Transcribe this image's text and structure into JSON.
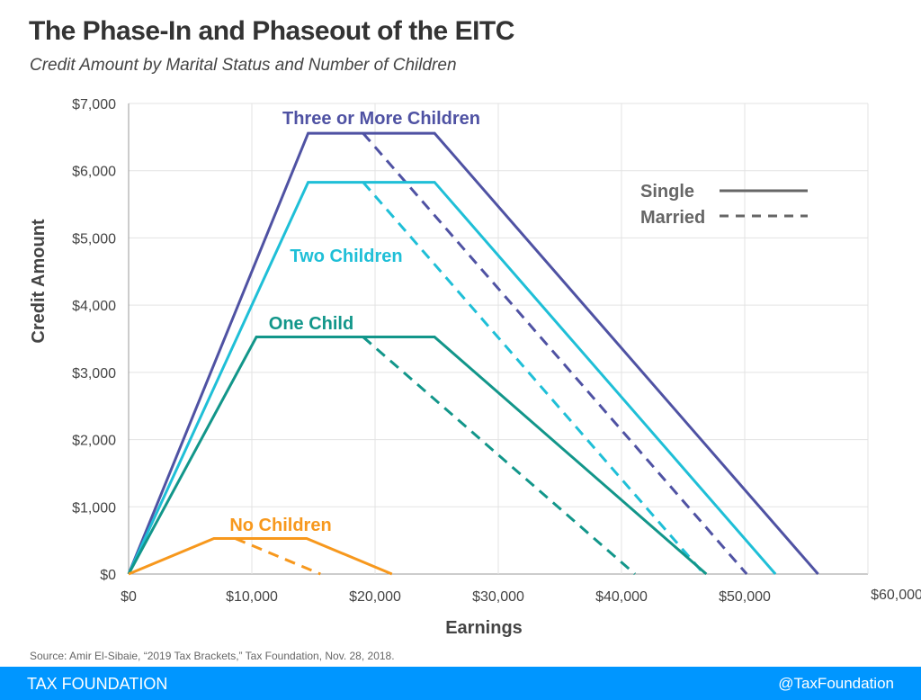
{
  "header": {
    "title": "The Phase-In and Phaseout of the EITC",
    "subtitle": "Credit Amount by Marital Status and Number of Children"
  },
  "source": "Source: Amir El-Sibaie, “2019 Tax Brackets,” Tax Foundation, Nov. 28, 2018.",
  "footer": {
    "brand": "TAX FOUNDATION",
    "handle": "@TaxFoundation",
    "color": "#0096ff"
  },
  "chart_data": {
    "type": "line",
    "xlabel": "Earnings",
    "ylabel": "Credit Amount",
    "xlim": [
      0,
      60000
    ],
    "ylim": [
      0,
      7000
    ],
    "xticks": [
      0,
      10000,
      20000,
      30000,
      40000,
      50000,
      60000
    ],
    "xtick_labels": [
      "$0",
      "$10,000",
      "$20,000",
      "$30,000",
      "$40,000",
      "$50,000",
      "$60,000"
    ],
    "yticks": [
      0,
      1000,
      2000,
      3000,
      4000,
      5000,
      6000,
      7000
    ],
    "ytick_labels": [
      "$0",
      "$1,000",
      "$2,000",
      "$3,000",
      "$4,000",
      "$5,000",
      "$6,000",
      "$7,000"
    ],
    "grid": true,
    "legend": {
      "placement": "right",
      "entries": [
        {
          "label": "Single",
          "style": "solid"
        },
        {
          "label": "Married",
          "style": "dashed"
        }
      ]
    },
    "groups": [
      {
        "label": "Three or More Children",
        "color": "#4f52a3",
        "solid": [
          [
            0,
            0
          ],
          [
            14570,
            6557
          ],
          [
            24830,
            6557
          ],
          [
            55952,
            0
          ]
        ],
        "dashed": [
          [
            19030,
            6557
          ],
          [
            50162,
            0
          ]
        ]
      },
      {
        "label": "Two Children",
        "color": "#1fbfd7",
        "solid": [
          [
            0,
            0
          ],
          [
            14570,
            5828
          ],
          [
            24830,
            5828
          ],
          [
            52493,
            0
          ]
        ],
        "dashed": [
          [
            19030,
            5828
          ],
          [
            46703,
            0
          ]
        ]
      },
      {
        "label": "One Child",
        "color": "#12968a",
        "solid": [
          [
            0,
            0
          ],
          [
            10370,
            3526
          ],
          [
            24830,
            3526
          ],
          [
            46884,
            0
          ]
        ],
        "dashed": [
          [
            19030,
            3526
          ],
          [
            41094,
            0
          ]
        ]
      },
      {
        "label": "No Children",
        "color": "#f7981d",
        "solid": [
          [
            0,
            0
          ],
          [
            6920,
            529
          ],
          [
            14450,
            529
          ],
          [
            21370,
            0
          ]
        ],
        "dashed": [
          [
            8650,
            529
          ],
          [
            15570,
            0
          ]
        ]
      }
    ]
  }
}
